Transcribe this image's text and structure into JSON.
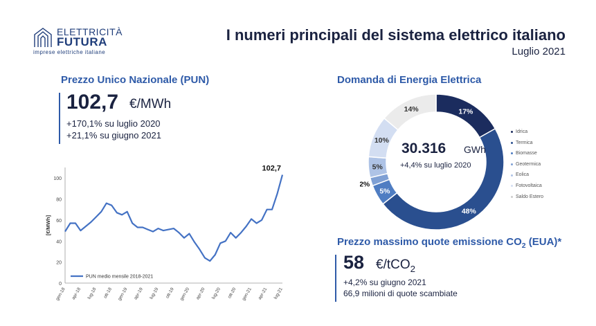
{
  "header": {
    "logo_line1": "ELETTRICITÀ",
    "logo_line2": "FUTURA",
    "logo_tagline": "imprese elettriche italiane",
    "title": "I numeri principali del sistema elettrico italiano",
    "subtitle": "Luglio 2021"
  },
  "pun": {
    "title": "Prezzo Unico Nazionale (PUN)",
    "value": "102,7",
    "unit": "€/MWh",
    "note1": "+170,1% su luglio 2020",
    "note2": "+21,1% su giugno 2021"
  },
  "demand": {
    "title": "Domanda di Energia Elettrica",
    "value": "30.316",
    "unit": "GWh",
    "note": "+4,4% su luglio 2020"
  },
  "co2": {
    "title_main": "Prezzo massimo quote emissione CO",
    "title_sub": "2",
    "title_end": " (EUA)*",
    "value": "58",
    "unit_main": "€/tCO",
    "unit_sub": "2",
    "note1": "+4,2% su giugno 2021",
    "note2": "66,9 milioni di quote scambiate"
  },
  "colors": {
    "accent": "#2e5aa8",
    "navy": "#1a2240",
    "line": "#4472c4"
  },
  "chart_data": [
    {
      "type": "line",
      "title": "",
      "ylabel": "[€/MWh]",
      "ylim": [
        0,
        110
      ],
      "yticks": [
        0,
        20,
        40,
        60,
        80,
        100
      ],
      "x_tick_labels": [
        "gen-18",
        "apr-18",
        "lug-18",
        "ott-18",
        "gen-19",
        "apr-19",
        "lug-19",
        "ott-19",
        "gen-20",
        "apr-20",
        "lug-20",
        "ott-20",
        "gen-21",
        "apr-21",
        "lug-21"
      ],
      "series": [
        {
          "name": "PUN medio mensile 2018-2021",
          "values": [
            49,
            57,
            57,
            50,
            54,
            58,
            63,
            68,
            76,
            74,
            67,
            65,
            68,
            57,
            53,
            53,
            51,
            49,
            52,
            50,
            51,
            52,
            48,
            43,
            47,
            39,
            32,
            24,
            21,
            27,
            38,
            40,
            48,
            43,
            48,
            54,
            61,
            57,
            60,
            70,
            70,
            85,
            103
          ],
          "end_label": "102,7"
        }
      ],
      "legend": "bottom-left"
    },
    {
      "type": "pie",
      "title": "Domanda di Energia Elettrica",
      "labels": [
        "Idrica",
        "Termica",
        "Biomasse",
        "Geotermica",
        "Eolica",
        "Fotovoltaica",
        "Saldo Estero"
      ],
      "values": [
        17,
        48,
        5,
        2,
        5,
        10,
        14
      ],
      "value_labels": [
        "17%",
        "48%",
        "5%",
        "2%",
        "5%",
        "10%",
        "14%"
      ],
      "colors": [
        "#1b2c5e",
        "#2a4f8f",
        "#4f7dc2",
        "#7fa0d4",
        "#aec3e6",
        "#d3def2",
        "#ebebeb"
      ],
      "legend": "right"
    }
  ]
}
